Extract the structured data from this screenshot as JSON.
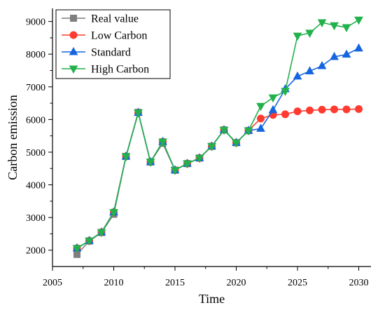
{
  "chart_data": {
    "type": "line",
    "title": "",
    "xlabel": "Time",
    "ylabel": "Carbon emission",
    "xlim": [
      2005,
      2031
    ],
    "ylim": [
      1500,
      9400
    ],
    "xticks": [
      2005,
      2010,
      2015,
      2020,
      2025,
      2030
    ],
    "yticks": [
      2000,
      3000,
      4000,
      5000,
      6000,
      7000,
      8000,
      9000
    ],
    "grid": false,
    "legend_position": "top-left",
    "series": [
      {
        "name": "Real value",
        "color": "#7f7f7f",
        "marker": "square",
        "x": [
          2007,
          2008,
          2009,
          2010,
          2011,
          2012,
          2013,
          2014,
          2015,
          2016,
          2017,
          2018,
          2019,
          2020,
          2021
        ],
        "y": [
          1870,
          2280,
          2540,
          3100,
          4870,
          6220,
          4700,
          5270,
          4450,
          4650,
          4820,
          5180,
          5680,
          5290,
          5660
        ]
      },
      {
        "name": "Low Carbon",
        "color": "#ff3b30",
        "marker": "circle",
        "x": [
          2007,
          2008,
          2009,
          2010,
          2011,
          2012,
          2013,
          2014,
          2015,
          2016,
          2017,
          2018,
          2019,
          2020,
          2021,
          2022,
          2023,
          2024,
          2025,
          2026,
          2027,
          2028,
          2029,
          2030
        ],
        "y": [
          2060,
          2290,
          2550,
          3160,
          4870,
          6210,
          4700,
          5320,
          4450,
          4650,
          4820,
          5180,
          5680,
          5290,
          5660,
          6030,
          6140,
          6160,
          6250,
          6280,
          6300,
          6310,
          6310,
          6320
        ]
      },
      {
        "name": "Standard",
        "color": "#1565e0",
        "marker": "triangle-up",
        "x": [
          2007,
          2008,
          2009,
          2010,
          2011,
          2012,
          2013,
          2014,
          2015,
          2016,
          2017,
          2018,
          2019,
          2020,
          2021,
          2022,
          2023,
          2024,
          2025,
          2026,
          2027,
          2028,
          2029,
          2030
        ],
        "y": [
          2060,
          2290,
          2550,
          3160,
          4870,
          6210,
          4700,
          5320,
          4450,
          4650,
          4820,
          5180,
          5680,
          5290,
          5660,
          5720,
          6290,
          6930,
          7320,
          7480,
          7640,
          7920,
          7990,
          8180
        ]
      },
      {
        "name": "High Carbon",
        "color": "#22b14c",
        "marker": "triangle-down",
        "x": [
          2007,
          2008,
          2009,
          2010,
          2011,
          2012,
          2013,
          2014,
          2015,
          2016,
          2017,
          2018,
          2019,
          2020,
          2021,
          2022,
          2023,
          2024,
          2025,
          2026,
          2027,
          2028,
          2029,
          2030
        ],
        "y": [
          2060,
          2290,
          2550,
          3160,
          4870,
          6210,
          4700,
          5320,
          4450,
          4650,
          4820,
          5180,
          5680,
          5290,
          5660,
          6410,
          6670,
          6870,
          8560,
          8650,
          8970,
          8880,
          8820,
          9050
        ]
      }
    ]
  }
}
